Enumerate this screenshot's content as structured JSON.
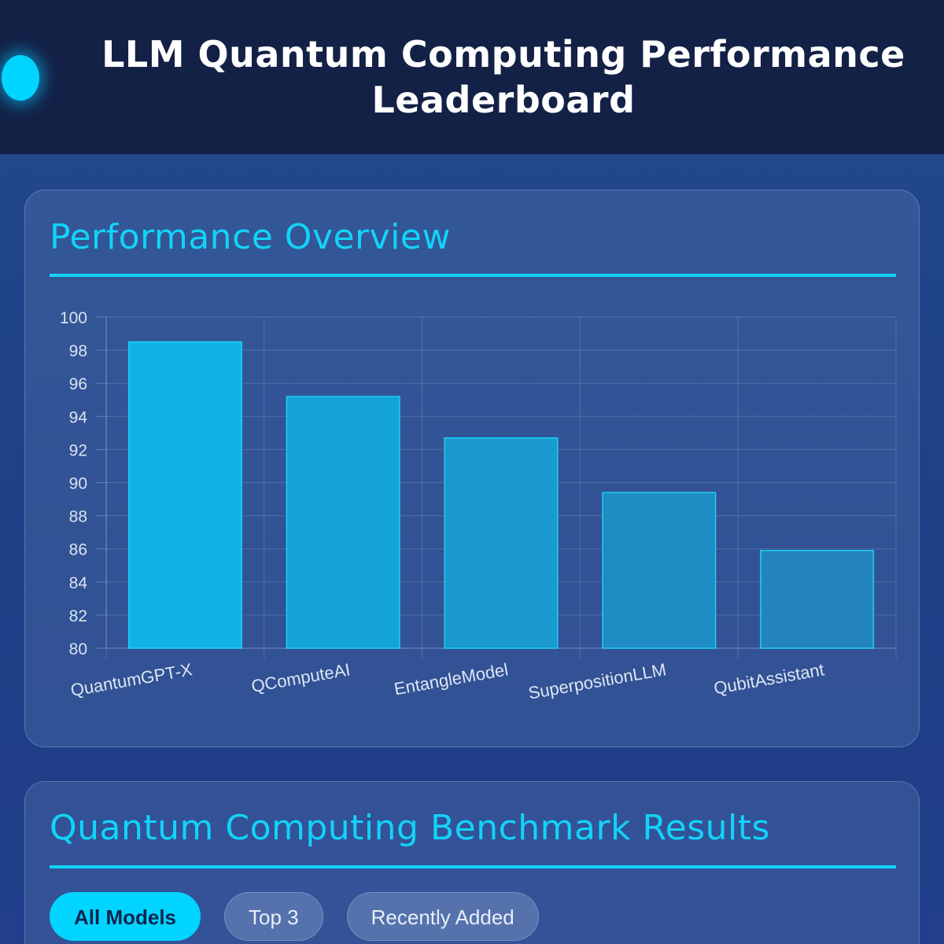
{
  "header": {
    "title": "LLM Quantum Computing Performance Leaderboard",
    "logo": "glowing-dot-logo"
  },
  "overview": {
    "title": "Performance Overview"
  },
  "chart_data": {
    "type": "bar",
    "categories": [
      "QuantumGPT-X",
      "QComputeAI",
      "EntangleModel",
      "SuperpositionLLM",
      "QubitAssistant"
    ],
    "values": [
      98.5,
      95.2,
      92.7,
      89.4,
      85.9
    ],
    "ylim": [
      80,
      100
    ],
    "yticks": [
      80,
      82,
      84,
      86,
      88,
      90,
      92,
      94,
      96,
      98,
      100
    ],
    "grid": true,
    "bar_colors": [
      "#11b2e5",
      "#14a3d9",
      "#1a9ace",
      "#1f8cc4",
      "#2384bc"
    ],
    "bar_border": "#1bd0f6"
  },
  "benchmark": {
    "title": "Quantum Computing Benchmark Results",
    "filters": [
      {
        "label": "All Models",
        "active": true
      },
      {
        "label": "Top 3",
        "active": false
      },
      {
        "label": "Recently Added",
        "active": false
      }
    ]
  }
}
